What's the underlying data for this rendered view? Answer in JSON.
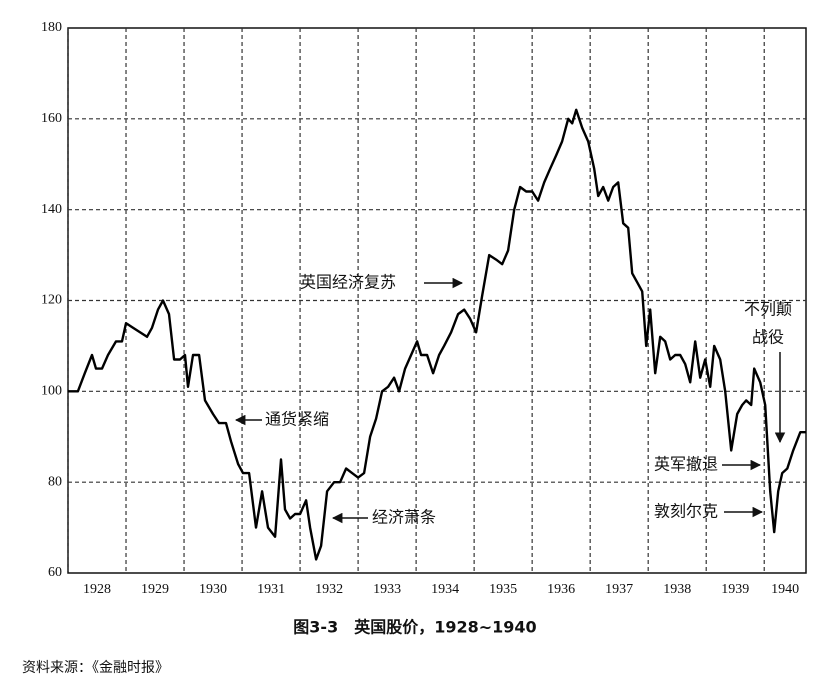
{
  "chart_data": {
    "type": "line",
    "title": "图3-3　英国股价，1928~1940",
    "source": "资料来源：《金融时报》",
    "x": [
      1928.0,
      1928.17,
      1928.29,
      1928.414,
      1928.483,
      1928.586,
      1928.69,
      1928.828,
      1928.931,
      1929.0,
      1929.121,
      1929.241,
      1929.362,
      1929.448,
      1929.552,
      1929.638,
      1929.741,
      1929.828,
      1929.931,
      1930.017,
      1930.069,
      1930.155,
      1930.259,
      1930.362,
      1930.5,
      1930.603,
      1930.724,
      1930.81,
      1930.931,
      1931.017,
      1931.121,
      1931.241,
      1931.345,
      1931.448,
      1931.569,
      1931.672,
      1931.741,
      1931.828,
      1931.914,
      1932.0,
      1932.103,
      1932.172,
      1932.276,
      1932.362,
      1932.466,
      1932.586,
      1932.69,
      1932.793,
      1932.897,
      1933.0,
      1933.103,
      1933.207,
      1933.31,
      1933.414,
      1933.517,
      1933.621,
      1933.707,
      1933.81,
      1933.914,
      1934.017,
      1934.086,
      1934.19,
      1934.293,
      1934.397,
      1934.483,
      1934.603,
      1934.724,
      1934.828,
      1934.931,
      1935.034,
      1935.138,
      1935.259,
      1935.379,
      1935.483,
      1935.586,
      1935.69,
      1935.793,
      1935.897,
      1936.0,
      1936.103,
      1936.207,
      1936.31,
      1936.414,
      1936.517,
      1936.621,
      1936.69,
      1936.759,
      1936.862,
      1936.966,
      1937.069,
      1937.138,
      1937.224,
      1937.31,
      1937.397,
      1937.483,
      1937.569,
      1937.655,
      1937.724,
      1937.81,
      1937.897,
      1937.966,
      1938.034,
      1938.121,
      1938.207,
      1938.293,
      1938.379,
      1938.466,
      1938.552,
      1938.638,
      1938.724,
      1938.81,
      1938.897,
      1938.983,
      1939.069,
      1939.138,
      1939.241,
      1939.328,
      1939.431,
      1939.534,
      1939.621,
      1939.69,
      1939.776,
      1939.828,
      1939.931,
      1940.017,
      1940.103,
      1940.172,
      1940.241,
      1940.31,
      1940.397,
      1940.5,
      1940.621,
      1940.72
    ],
    "series": [
      {
        "color": "#000000",
        "values": [
          100,
          100,
          104,
          108,
          105,
          105,
          108,
          111,
          111,
          115,
          114,
          113,
          112,
          114,
          118,
          120,
          117,
          107,
          107,
          108,
          101,
          108,
          108,
          98,
          95,
          93,
          93,
          89,
          84,
          82,
          82,
          70,
          78,
          70,
          68,
          85,
          74,
          72,
          73,
          73,
          76,
          70,
          63,
          66,
          78,
          80,
          80,
          83,
          82,
          81,
          82,
          90,
          94,
          100,
          101,
          103,
          100,
          105,
          108,
          111,
          108,
          108,
          104,
          108,
          110,
          113,
          117,
          118,
          116,
          113,
          121,
          130,
          129,
          128,
          131,
          140,
          145,
          144,
          144,
          142,
          146,
          149,
          152,
          155,
          160,
          159,
          162,
          158,
          155,
          149,
          143,
          145,
          142,
          145,
          146,
          137,
          136,
          126,
          124,
          122,
          110,
          118,
          104,
          112,
          111,
          107,
          108,
          108,
          106,
          102,
          111,
          103,
          107,
          101,
          110,
          107,
          100,
          87,
          95,
          97,
          98,
          97,
          105,
          102,
          97,
          78,
          69,
          78,
          82,
          83,
          87,
          91,
          91
        ]
      }
    ],
    "xlim": [
      1928,
      1940.72
    ],
    "xticks": [
      1928,
      1929,
      1930,
      1931,
      1932,
      1933,
      1934,
      1935,
      1936,
      1937,
      1938,
      1939,
      1940
    ],
    "ylim": [
      60,
      180
    ],
    "yticks": [
      60,
      80,
      100,
      120,
      140,
      160,
      180
    ],
    "grid": true,
    "annotations": [
      "英国经济复苏",
      "通货紧缩",
      "经济萧条",
      "不列颠",
      "战役",
      "英军撤退",
      "敦刻尔克"
    ]
  }
}
